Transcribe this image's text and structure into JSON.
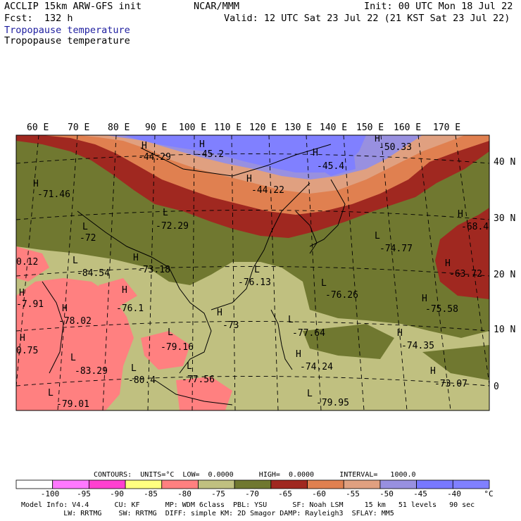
{
  "header": {
    "title_left": "ACCLIP 15km ARW-GFS init",
    "center_org": "NCAR/MMM",
    "init": "Init: 00 UTC Mon 18 Jul 22",
    "forecast": "Fcst:  132 h",
    "valid": "Valid: 12 UTC Sat 23 Jul 22 (21 KST Sat 23 Jul 22)",
    "field_title_1": "Tropopause temperature",
    "field_title_2": "Tropopause temperature"
  },
  "map": {
    "lon_labels": [
      "60 E",
      "70 E",
      "80 E",
      "90 E",
      "100 E",
      "110 E",
      "120 E",
      "130 E",
      "140 E",
      "150 E",
      "160 E",
      "170 E"
    ],
    "lat_labels": [
      "40 N",
      "30 N",
      "20 N",
      "10 N",
      "0"
    ],
    "centers": [
      {
        "type": "H",
        "value": "-44.29"
      },
      {
        "type": "H",
        "value": "-45.2"
      },
      {
        "type": "H",
        "value": "-45.4"
      },
      {
        "type": "H",
        "value": "-50.33"
      },
      {
        "type": "H",
        "value": "-44.22"
      },
      {
        "type": "H",
        "value": "-71.46"
      },
      {
        "type": "L",
        "value": "-72.29"
      },
      {
        "type": "L",
        "value": "-72"
      },
      {
        "type": "H",
        "value": "-68.4"
      },
      {
        "type": "L",
        "value": "-74.77"
      },
      {
        "type": "H",
        "value": "-63.72"
      },
      {
        "type": "L",
        "value": "-84.54"
      },
      {
        "type": "H",
        "value": "-73.18"
      },
      {
        "type": "L",
        "value": "-76.13"
      },
      {
        "type": "L",
        "value": "-76.26"
      },
      {
        "type": "H",
        "value": "-75.58"
      },
      {
        "type": "H",
        "value": "-76.1"
      },
      {
        "type": "H",
        "value": "-78.02"
      },
      {
        "type": "H",
        "value": "-73"
      },
      {
        "type": "L",
        "value": "-77.64"
      },
      {
        "type": "H",
        "value": "-74.35"
      },
      {
        "type": "L",
        "value": "-79.16"
      },
      {
        "type": "H",
        "value": "-74.24"
      },
      {
        "type": "L",
        "value": "-83.29"
      },
      {
        "type": "L",
        "value": "-80.4"
      },
      {
        "type": "L",
        "value": "-77.56"
      },
      {
        "type": "H",
        "value": "-73.07"
      },
      {
        "type": "L",
        "value": "-79.01"
      },
      {
        "type": "L",
        "value": "-79.95"
      },
      {
        "type": "H",
        "value": "-7.91"
      },
      {
        "type": "H",
        "value": "0.75"
      },
      {
        "type": "H",
        "value": "0.12"
      }
    ]
  },
  "colors": {
    "bin_colors": [
      "#ffffff",
      "#ff78ff",
      "#ff40d0",
      "#ffff80",
      "#ff8080",
      "#c0c080",
      "#707830",
      "#a02820",
      "#e08050",
      "#e0a080",
      "#9890e0",
      "#7878ff",
      "#8080ff"
    ],
    "border_black": "#000000"
  },
  "legend": {
    "contours_line": "CONTOURS:  UNITS=°C  LOW=  0.0000      HIGH=  0.0000      INTERVAL=   1000.0",
    "tick_labels": [
      "-100",
      "-95",
      "-90",
      "-85",
      "-80",
      "-75",
      "-70",
      "-65",
      "-60",
      "-55",
      "-50",
      "-45",
      "-40"
    ],
    "unit": "°C"
  },
  "footer": {
    "line1": "Model Info: V4.4      CU: KF      MP: WDM 6class  PBL: YSU      SF: Noah LSM     15 km   51 levels   90 sec",
    "line2": "          LW: RRTMG    SW: RRTMG  DIFF: simple KM: 2D Smagor DAMP: Rayleigh3  SFLAY: MM5"
  }
}
